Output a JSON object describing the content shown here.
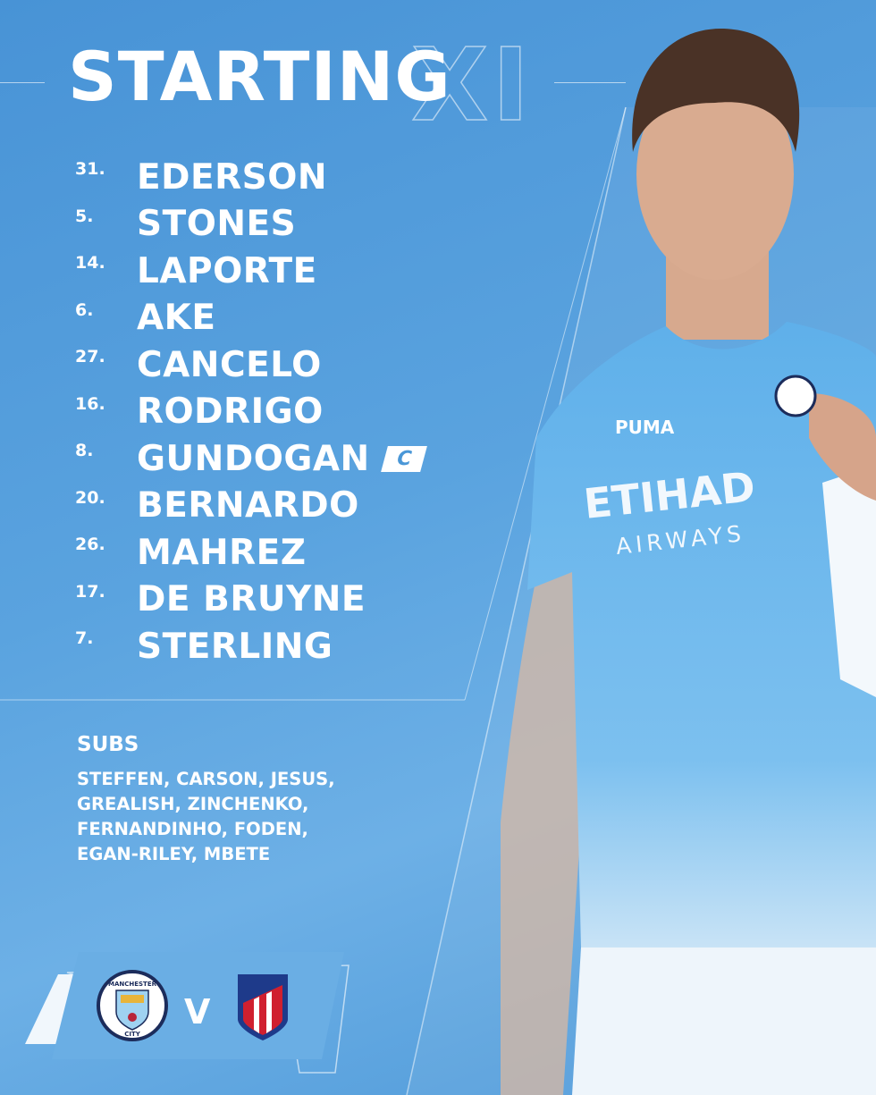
{
  "header": {
    "title": "STARTING",
    "title_outline": "XI"
  },
  "lineup": [
    {
      "number": "31.",
      "name": "EDERSON"
    },
    {
      "number": "5.",
      "name": "STONES"
    },
    {
      "number": "14.",
      "name": "LAPORTE"
    },
    {
      "number": "6.",
      "name": "AKE"
    },
    {
      "number": "27.",
      "name": "CANCELO"
    },
    {
      "number": "16.",
      "name": "RODRIGO"
    },
    {
      "number": "8.",
      "name": "GUNDOGAN",
      "badge": "C"
    },
    {
      "number": "20.",
      "name": "BERNARDO"
    },
    {
      "number": "26.",
      "name": "MAHREZ"
    },
    {
      "number": "17.",
      "name": "DE BRUYNE"
    },
    {
      "number": "7.",
      "name": "STERLING"
    }
  ],
  "subs": {
    "label": "SUBS",
    "lines": [
      "STEFFEN, CARSON, JESUS,",
      "GREALISH, ZINCHENKO,",
      "FERNANDINHO, FODEN,",
      "EGAN-RILEY, MBETE"
    ]
  },
  "fixture": {
    "home_crest": "manchester-city-crest",
    "home_crest_text": "MANCHESTER CITY",
    "separator": "V",
    "away_crest": "atletico-madrid-crest"
  },
  "shirt": {
    "sponsor_line1": "ETIHAD",
    "sponsor_line2": "AIRWAYS",
    "brand_icon": "puma-icon"
  },
  "colors": {
    "background": "#4a97d7",
    "shirt": "#6cb6ea",
    "atletico_red": "#d0202f",
    "atletico_blue": "#1e3a8a"
  }
}
